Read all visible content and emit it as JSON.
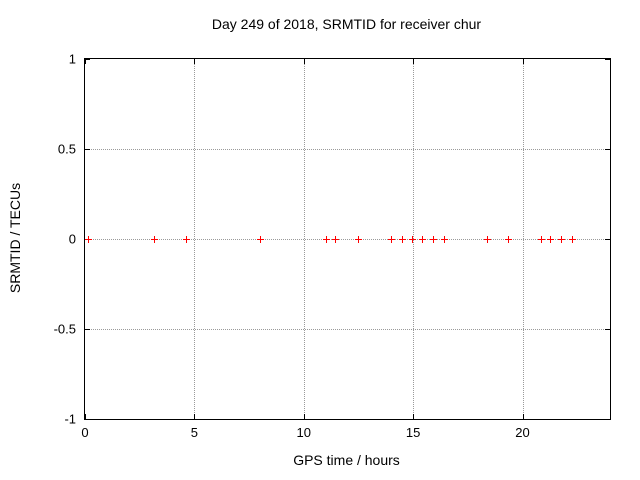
{
  "chart_data": {
    "type": "scatter",
    "title": "Day 249 of 2018, SRMTID for receiver chur",
    "xlabel": "GPS time / hours",
    "ylabel": "SRMTID / TECUs",
    "xlim": [
      0,
      24
    ],
    "ylim": [
      -1,
      1
    ],
    "xticks": [
      0,
      5,
      10,
      15,
      20
    ],
    "yticks": [
      1,
      0.5,
      0,
      -0.5,
      -1
    ],
    "grid": true,
    "legend_position": "none",
    "marker": "plus",
    "colors": {
      "marker": "#ff0000",
      "grid": "#9a9a9a",
      "axis": "#000000",
      "background": "#ffffff"
    },
    "series": [
      {
        "name": "SRMTID",
        "x": [
          0.17,
          3.17,
          4.62,
          8.0,
          11.02,
          11.45,
          12.5,
          14.0,
          14.5,
          14.95,
          15.45,
          15.95,
          16.42,
          18.42,
          19.37,
          20.85,
          21.3,
          21.8,
          22.3
        ],
        "y": [
          0,
          0,
          0,
          0,
          0,
          0,
          0,
          0,
          0,
          0,
          0,
          0,
          0,
          0,
          0,
          0,
          0,
          0,
          0
        ]
      }
    ]
  }
}
